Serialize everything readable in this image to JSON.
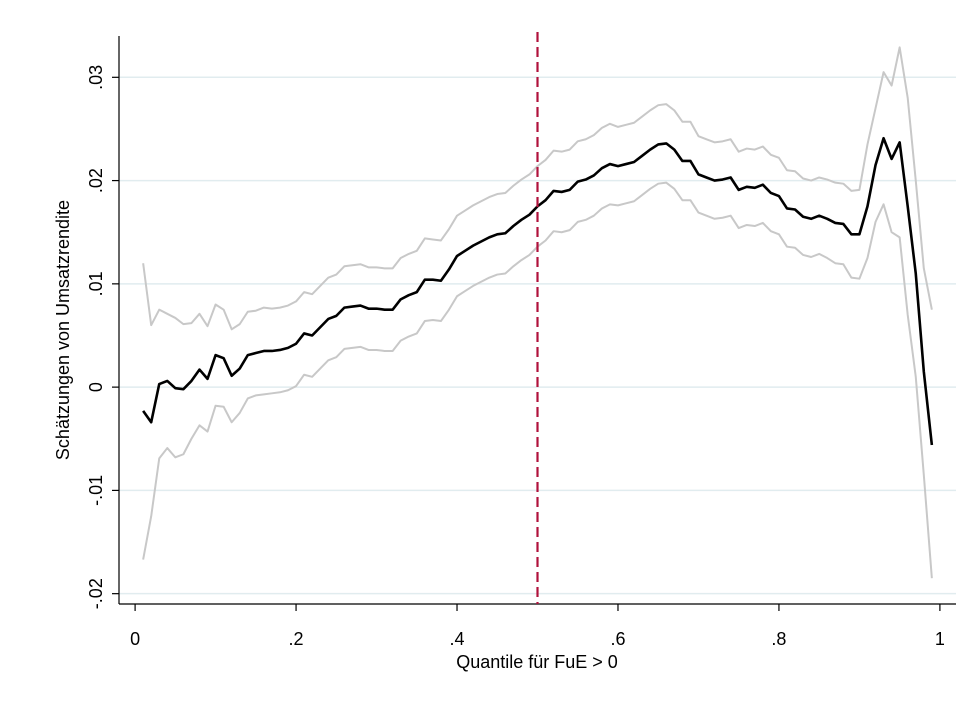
{
  "chart_data": {
    "type": "line",
    "x_label": "Quantile für FuE > 0",
    "y_label": "Schätzungen von Umsatzrendite",
    "x": [
      0.01,
      0.02,
      0.03,
      0.04,
      0.05,
      0.06,
      0.07,
      0.08,
      0.09,
      0.1,
      0.11,
      0.12,
      0.13,
      0.14,
      0.15,
      0.16,
      0.17,
      0.18,
      0.19,
      0.2,
      0.21,
      0.22,
      0.23,
      0.24,
      0.25,
      0.26,
      0.27,
      0.28,
      0.29,
      0.3,
      0.31,
      0.32,
      0.33,
      0.34,
      0.35,
      0.36,
      0.37,
      0.38,
      0.39,
      0.4,
      0.41,
      0.42,
      0.43,
      0.44,
      0.45,
      0.46,
      0.47,
      0.48,
      0.49,
      0.5,
      0.51,
      0.52,
      0.53,
      0.54,
      0.55,
      0.56,
      0.57,
      0.58,
      0.59,
      0.6,
      0.61,
      0.62,
      0.63,
      0.64,
      0.65,
      0.66,
      0.67,
      0.68,
      0.69,
      0.7,
      0.71,
      0.72,
      0.73,
      0.74,
      0.75,
      0.76,
      0.77,
      0.78,
      0.79,
      0.8,
      0.81,
      0.82,
      0.83,
      0.84,
      0.85,
      0.86,
      0.87,
      0.88,
      0.89,
      0.9,
      0.91,
      0.92,
      0.93,
      0.94,
      0.95,
      0.96,
      0.97,
      0.98,
      0.99
    ],
    "series": [
      {
        "color": "#c8c8c8",
        "width": 2,
        "values": [
          0.012,
          0.006,
          0.0075,
          0.0071,
          0.0067,
          0.0061,
          0.0062,
          0.0071,
          0.0059,
          0.008,
          0.0075,
          0.0056,
          0.0061,
          0.0073,
          0.0074,
          0.0077,
          0.0076,
          0.0077,
          0.0079,
          0.0083,
          0.0092,
          0.009,
          0.0098,
          0.0106,
          0.0109,
          0.0117,
          0.0118,
          0.0119,
          0.0116,
          0.0116,
          0.0115,
          0.0115,
          0.0125,
          0.0129,
          0.0132,
          0.0144,
          0.0143,
          0.0142,
          0.0153,
          0.0166,
          0.0171,
          0.0176,
          0.018,
          0.0184,
          0.0187,
          0.0188,
          0.0195,
          0.0201,
          0.0206,
          0.0214,
          0.022,
          0.0229,
          0.0228,
          0.023,
          0.0238,
          0.024,
          0.0244,
          0.0251,
          0.0255,
          0.0252,
          0.0254,
          0.0256,
          0.0262,
          0.0268,
          0.0273,
          0.0274,
          0.0268,
          0.0257,
          0.0257,
          0.0243,
          0.024,
          0.0237,
          0.0238,
          0.024,
          0.0228,
          0.0231,
          0.023,
          0.0233,
          0.0225,
          0.0222,
          0.021,
          0.0209,
          0.0202,
          0.02,
          0.0203,
          0.0201,
          0.0198,
          0.0197,
          0.019,
          0.0191,
          0.0235,
          0.027,
          0.0305,
          0.0292,
          0.0329,
          0.028,
          0.02,
          0.0115,
          0.0075
        ]
      },
      {
        "color": "#c8c8c8",
        "width": 2,
        "values": [
          -0.0167,
          -0.0125,
          -0.0069,
          -0.0059,
          -0.0068,
          -0.0065,
          -0.005,
          -0.0037,
          -0.0043,
          -0.0018,
          -0.0019,
          -0.0034,
          -0.0025,
          -0.0011,
          -0.0008,
          -0.0007,
          -0.0006,
          -0.0005,
          -0.0003,
          0.0001,
          0.0012,
          0.001,
          0.0018,
          0.0026,
          0.0029,
          0.0037,
          0.0038,
          0.0039,
          0.0036,
          0.0036,
          0.0035,
          0.0035,
          0.0045,
          0.0049,
          0.0052,
          0.0064,
          0.0065,
          0.0064,
          0.0075,
          0.0088,
          0.0093,
          0.0098,
          0.0102,
          0.0106,
          0.0109,
          0.011,
          0.0117,
          0.0123,
          0.0128,
          0.0136,
          0.0142,
          0.0151,
          0.015,
          0.0152,
          0.016,
          0.0162,
          0.0166,
          0.0173,
          0.0177,
          0.0176,
          0.0178,
          0.018,
          0.0186,
          0.0192,
          0.0197,
          0.0198,
          0.0192,
          0.0181,
          0.0181,
          0.0169,
          0.0166,
          0.0163,
          0.0164,
          0.0166,
          0.0154,
          0.0157,
          0.0156,
          0.0159,
          0.0151,
          0.0148,
          0.0136,
          0.0135,
          0.0128,
          0.0126,
          0.0129,
          0.0125,
          0.012,
          0.0119,
          0.0106,
          0.0105,
          0.0125,
          0.016,
          0.0177,
          0.015,
          0.0145,
          0.007,
          0.001,
          -0.0085,
          -0.0185
        ]
      },
      {
        "color": "#000000",
        "width": 2.6,
        "values": [
          -0.0023,
          -0.0034,
          0.0003,
          0.0006,
          -0.0001,
          -0.0002,
          0.0006,
          0.0017,
          0.0008,
          0.0031,
          0.0028,
          0.0011,
          0.0018,
          0.0031,
          0.0033,
          0.0035,
          0.0035,
          0.0036,
          0.0038,
          0.0042,
          0.0052,
          0.005,
          0.0058,
          0.0066,
          0.0069,
          0.0077,
          0.0078,
          0.0079,
          0.0076,
          0.0076,
          0.0075,
          0.0075,
          0.0085,
          0.0089,
          0.0092,
          0.0104,
          0.0104,
          0.0103,
          0.0114,
          0.0127,
          0.0132,
          0.0137,
          0.0141,
          0.0145,
          0.0148,
          0.0149,
          0.0156,
          0.0162,
          0.0167,
          0.0175,
          0.0181,
          0.019,
          0.0189,
          0.0191,
          0.0199,
          0.0201,
          0.0205,
          0.0212,
          0.0216,
          0.0214,
          0.0216,
          0.0218,
          0.0224,
          0.023,
          0.0235,
          0.0236,
          0.023,
          0.0219,
          0.0219,
          0.0206,
          0.0203,
          0.02,
          0.0201,
          0.0203,
          0.0191,
          0.0194,
          0.0193,
          0.0196,
          0.0188,
          0.0185,
          0.0173,
          0.0172,
          0.0165,
          0.0163,
          0.0166,
          0.0163,
          0.0159,
          0.0158,
          0.0148,
          0.0148,
          0.0175,
          0.0215,
          0.0241,
          0.0221,
          0.0237,
          0.0175,
          0.011,
          0.0015,
          -0.0056
        ]
      }
    ],
    "vline": {
      "x": 0.5,
      "color": "#b0123c"
    },
    "xlim": [
      -0.02,
      1.02
    ],
    "ylim": [
      -0.021,
      0.034
    ],
    "xticks": [
      0,
      {
        "value": 0.2,
        "label": ".2"
      },
      {
        "value": 0.4,
        "label": ".4"
      },
      {
        "value": 0.6,
        "label": ".6"
      },
      {
        "value": 0.8,
        "label": ".8"
      },
      1
    ],
    "yticks": [
      {
        "value": -0.02,
        "label": "-.02"
      },
      {
        "value": -0.01,
        "label": "-.01"
      },
      0,
      {
        "value": 0.01,
        "label": ".01"
      },
      {
        "value": 0.02,
        "label": ".02"
      },
      {
        "value": 0.03,
        "label": ".03"
      }
    ],
    "grid": true,
    "grid_color": "#e1ecef"
  }
}
